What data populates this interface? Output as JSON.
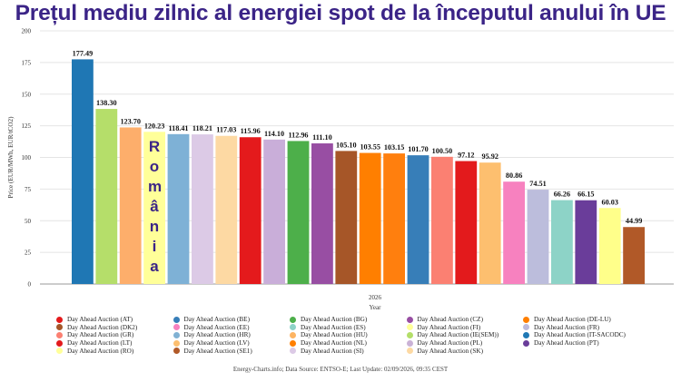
{
  "title": "Prețul mediu zilnic al energiei spot de la începutul anului în UE",
  "annotation": "România",
  "source": "Energy-Charts.info; Data Source: ENTSO-E; Last Update: 02/09/2026, 09:35 CEST",
  "chart_data": {
    "type": "bar",
    "xlabel": "Year",
    "ylabel": "Price (EUR/MWh, EUR/tCO2)",
    "category_label": "2026",
    "ylim": [
      0,
      200
    ],
    "yticks": [
      0,
      25,
      50,
      75,
      100,
      125,
      150,
      175,
      200
    ],
    "grid": true,
    "legend_position": "bottom",
    "bars": [
      {
        "label": "177.49",
        "value": 177.49,
        "color": "#1f77b4"
      },
      {
        "label": "138.30",
        "value": 138.3,
        "color": "#b5de6a"
      },
      {
        "label": "123.70",
        "value": 123.7,
        "color": "#fdae6b"
      },
      {
        "label": "120.23",
        "value": 120.23,
        "color": "#ffff99"
      },
      {
        "label": "118.41",
        "value": 118.41,
        "color": "#7eb1d6"
      },
      {
        "label": "118.21",
        "value": 118.21,
        "color": "#dccae6"
      },
      {
        "label": "117.03",
        "value": 117.03,
        "color": "#fdd9a3"
      },
      {
        "label": "115.96",
        "value": 115.96,
        "color": "#e41a1c"
      },
      {
        "label": "114.10",
        "value": 114.1,
        "color": "#c9aed9"
      },
      {
        "label": "112.96",
        "value": 112.96,
        "color": "#4daf4a"
      },
      {
        "label": "111.10",
        "value": 111.1,
        "color": "#984ea3"
      },
      {
        "label": "105.10",
        "value": 105.1,
        "color": "#a65628"
      },
      {
        "label": "103.55",
        "value": 103.55,
        "color": "#ff7f00"
      },
      {
        "label": "103.15",
        "value": 103.15,
        "color": "#ff7f0e"
      },
      {
        "label": "101.70",
        "value": 101.7,
        "color": "#377eb8"
      },
      {
        "label": "100.50",
        "value": 100.5,
        "color": "#fb8072"
      },
      {
        "label": "97.12",
        "value": 97.12,
        "color": "#e31a1c"
      },
      {
        "label": "95.92",
        "value": 95.92,
        "color": "#fdbf6f"
      },
      {
        "label": "80.86",
        "value": 80.86,
        "color": "#f781bf"
      },
      {
        "label": "74.51",
        "value": 74.51,
        "color": "#bcbddc"
      },
      {
        "label": "66.26",
        "value": 66.26,
        "color": "#8dd3c7"
      },
      {
        "label": "66.15",
        "value": 66.15,
        "color": "#6a3d9a"
      },
      {
        "label": "60.03",
        "value": 60.03,
        "color": "#ffff8a"
      },
      {
        "label": "44.99",
        "value": 44.99,
        "color": "#b15928"
      }
    ],
    "legend": [
      {
        "name": "Day Ahead Auction (AT)",
        "color": "#e41a1c"
      },
      {
        "name": "Day Ahead Auction (BE)",
        "color": "#377eb8"
      },
      {
        "name": "Day Ahead Auction (BG)",
        "color": "#4daf4a"
      },
      {
        "name": "Day Ahead Auction (CZ)",
        "color": "#984ea3"
      },
      {
        "name": "Day Ahead Auction (DE-LU)",
        "color": "#ff7f00"
      },
      {
        "name": "Day Ahead Auction (DK2)",
        "color": "#a65628"
      },
      {
        "name": "Day Ahead Auction (EE)",
        "color": "#f781bf"
      },
      {
        "name": "Day Ahead Auction (ES)",
        "color": "#8dd3c7"
      },
      {
        "name": "Day Ahead Auction (FI)",
        "color": "#ffff99"
      },
      {
        "name": "Day Ahead Auction (FR)",
        "color": "#bebada"
      },
      {
        "name": "Day Ahead Auction (GR)",
        "color": "#fb8072"
      },
      {
        "name": "Day Ahead Auction (HR)",
        "color": "#80b1d3"
      },
      {
        "name": "Day Ahead Auction (HU)",
        "color": "#fdb462"
      },
      {
        "name": "Day Ahead Auction (IE(SEM))",
        "color": "#b3de69"
      },
      {
        "name": "Day Ahead Auction (IT-SACODC)",
        "color": "#1f78b4"
      },
      {
        "name": "Day Ahead Auction (LT)",
        "color": "#e31a1c"
      },
      {
        "name": "Day Ahead Auction (LV)",
        "color": "#fdbf6f"
      },
      {
        "name": "Day Ahead Auction (NL)",
        "color": "#ff7f00"
      },
      {
        "name": "Day Ahead Auction (PL)",
        "color": "#cab2d6"
      },
      {
        "name": "Day Ahead Auction (PT)",
        "color": "#6a3d9a"
      },
      {
        "name": "Day Ahead Auction (RO)",
        "color": "#ffff99"
      },
      {
        "name": "Day Ahead Auction (SE1)",
        "color": "#b15928"
      },
      {
        "name": "Day Ahead Auction (SI)",
        "color": "#dccae6"
      },
      {
        "name": "Day Ahead Auction (SK)",
        "color": "#fdd9a3"
      }
    ]
  }
}
